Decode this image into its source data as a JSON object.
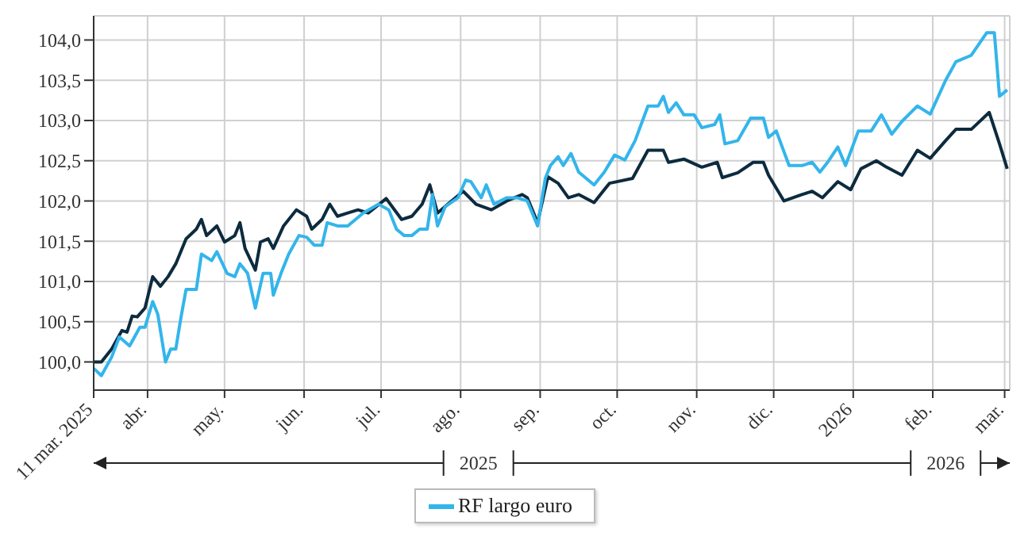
{
  "chart_data": {
    "type": "line",
    "xlim": [
      "2025-03-11",
      "2026-03-03"
    ],
    "ylim": [
      99.65,
      104.3
    ],
    "xticks": [
      {
        "value": "2025-03-11",
        "label": "11 mar. 2025"
      },
      {
        "value": "2025-04-01",
        "label": "abr."
      },
      {
        "value": "2025-05-01",
        "label": "may."
      },
      {
        "value": "2025-06-01",
        "label": "jun."
      },
      {
        "value": "2025-07-01",
        "label": "jul."
      },
      {
        "value": "2025-08-01",
        "label": "ago."
      },
      {
        "value": "2025-09-01",
        "label": "sep."
      },
      {
        "value": "2025-10-01",
        "label": "oct."
      },
      {
        "value": "2025-11-01",
        "label": "nov."
      },
      {
        "value": "2025-12-01",
        "label": "dic."
      },
      {
        "value": "2026-01-01",
        "label": "2026"
      },
      {
        "value": "2026-02-01",
        "label": "feb."
      },
      {
        "value": "2026-03-01",
        "label": "mar."
      }
    ],
    "yticks": [
      {
        "value": 100,
        "label": "100,0"
      },
      {
        "value": 100.5,
        "label": "100,5"
      },
      {
        "value": 101,
        "label": "101,0"
      },
      {
        "value": 101.5,
        "label": "101,5"
      },
      {
        "value": 102,
        "label": "102,0"
      },
      {
        "value": 102.5,
        "label": "102,5"
      },
      {
        "value": 103,
        "label": "103,0"
      },
      {
        "value": 103.5,
        "label": "103,5"
      },
      {
        "value": 104,
        "label": "104,0"
      }
    ],
    "grid": true,
    "legend": "bottom",
    "line_style": "solid",
    "annotations": [
      "2025",
      "2026"
    ],
    "series": [
      {
        "color": "#0d2b3e",
        "x": [
          "2025-03-11",
          "2025-03-14",
          "2025-03-18",
          "2025-03-22",
          "2025-03-24",
          "2025-03-26",
          "2025-03-28",
          "2025-03-31",
          "2025-04-03",
          "2025-04-06",
          "2025-04-09",
          "2025-04-12",
          "2025-04-16",
          "2025-04-20",
          "2025-04-22",
          "2025-04-24",
          "2025-04-28",
          "2025-05-01",
          "2025-05-05",
          "2025-05-07",
          "2025-05-09",
          "2025-05-13",
          "2025-05-15",
          "2025-05-18",
          "2025-05-20",
          "2025-05-24",
          "2025-05-29",
          "2025-06-02",
          "2025-06-04",
          "2025-06-08",
          "2025-06-11",
          "2025-06-14",
          "2025-06-18",
          "2025-06-22",
          "2025-06-26",
          "2025-07-03",
          "2025-07-09",
          "2025-07-13",
          "2025-07-17",
          "2025-07-20",
          "2025-07-23",
          "2025-07-27",
          "2025-08-02",
          "2025-08-07",
          "2025-08-13",
          "2025-08-19",
          "2025-08-25",
          "2025-08-27",
          "2025-08-31",
          "2025-09-04",
          "2025-09-08",
          "2025-09-12",
          "2025-09-16",
          "2025-09-22",
          "2025-09-28",
          "2025-10-07",
          "2025-10-13",
          "2025-10-19",
          "2025-10-21",
          "2025-10-27",
          "2025-11-03",
          "2025-11-09",
          "2025-11-11",
          "2025-11-17",
          "2025-11-23",
          "2025-11-27",
          "2025-11-29",
          "2025-12-05",
          "2025-12-12",
          "2025-12-16",
          "2025-12-20",
          "2025-12-26",
          "2025-12-31",
          "2026-01-04",
          "2026-01-10",
          "2026-01-14",
          "2026-01-20",
          "2026-01-26",
          "2026-01-31",
          "2026-02-06",
          "2026-02-10",
          "2026-02-16",
          "2026-02-23",
          "2026-02-27",
          "2026-03-02"
        ],
        "values": [
          100.0,
          100.0,
          100.16,
          100.39,
          100.37,
          100.57,
          100.56,
          100.67,
          101.06,
          100.94,
          101.06,
          101.22,
          101.53,
          101.65,
          101.77,
          101.57,
          101.69,
          101.49,
          101.57,
          101.73,
          101.41,
          101.14,
          101.49,
          101.53,
          101.41,
          101.69,
          101.89,
          101.81,
          101.65,
          101.77,
          101.96,
          101.81,
          101.85,
          101.89,
          101.85,
          102.03,
          101.77,
          101.81,
          101.96,
          102.2,
          101.85,
          101.96,
          102.12,
          101.96,
          101.89,
          102.0,
          102.08,
          102.04,
          101.73,
          102.3,
          102.22,
          102.04,
          102.08,
          101.98,
          102.22,
          102.28,
          102.63,
          102.63,
          102.48,
          102.52,
          102.42,
          102.48,
          102.29,
          102.35,
          102.48,
          102.48,
          102.32,
          102.0,
          102.08,
          102.12,
          102.04,
          102.24,
          102.14,
          102.4,
          102.5,
          102.42,
          102.32,
          102.63,
          102.53,
          102.75,
          102.89,
          102.89,
          103.1,
          102.71,
          102.4
        ]
      },
      {
        "name": "RF largo euro",
        "color": "#33b5eb",
        "x": [
          "2025-03-11",
          "2025-03-14",
          "2025-03-18",
          "2025-03-21",
          "2025-03-25",
          "2025-03-29",
          "2025-03-31",
          "2025-04-03",
          "2025-04-05",
          "2025-04-08",
          "2025-04-10",
          "2025-04-12",
          "2025-04-14",
          "2025-04-16",
          "2025-04-20",
          "2025-04-22",
          "2025-04-26",
          "2025-04-28",
          "2025-05-02",
          "2025-05-05",
          "2025-05-07",
          "2025-05-10",
          "2025-05-13",
          "2025-05-16",
          "2025-05-19",
          "2025-05-20",
          "2025-05-23",
          "2025-05-26",
          "2025-05-30",
          "2025-06-02",
          "2025-06-05",
          "2025-06-08",
          "2025-06-10",
          "2025-06-14",
          "2025-06-18",
          "2025-06-24",
          "2025-06-30",
          "2025-07-04",
          "2025-07-07",
          "2025-07-10",
          "2025-07-13",
          "2025-07-16",
          "2025-07-19",
          "2025-07-21",
          "2025-07-23",
          "2025-07-26",
          "2025-07-31",
          "2025-08-03",
          "2025-08-05",
          "2025-08-09",
          "2025-08-11",
          "2025-08-14",
          "2025-08-19",
          "2025-08-23",
          "2025-08-27",
          "2025-08-31",
          "2025-09-03",
          "2025-09-05",
          "2025-09-08",
          "2025-09-10",
          "2025-09-13",
          "2025-09-16",
          "2025-09-22",
          "2025-09-26",
          "2025-09-30",
          "2025-10-04",
          "2025-10-08",
          "2025-10-13",
          "2025-10-17",
          "2025-10-19",
          "2025-10-21",
          "2025-10-24",
          "2025-10-27",
          "2025-10-31",
          "2025-11-03",
          "2025-11-08",
          "2025-11-10",
          "2025-11-12",
          "2025-11-17",
          "2025-11-22",
          "2025-11-27",
          "2025-11-29",
          "2025-12-02",
          "2025-12-07",
          "2025-12-12",
          "2025-12-16",
          "2025-12-19",
          "2025-12-22",
          "2025-12-26",
          "2025-12-29",
          "2026-01-03",
          "2026-01-08",
          "2026-01-12",
          "2026-01-16",
          "2026-01-20",
          "2026-01-26",
          "2026-01-31",
          "2026-02-06",
          "2026-02-10",
          "2026-02-16",
          "2026-02-22",
          "2026-02-25",
          "2026-02-27",
          "2026-03-02"
        ],
        "values": [
          99.92,
          99.83,
          100.06,
          100.31,
          100.2,
          100.43,
          100.43,
          100.75,
          100.59,
          100.0,
          100.16,
          100.16,
          100.55,
          100.9,
          100.9,
          101.34,
          101.26,
          101.37,
          101.1,
          101.06,
          101.22,
          101.1,
          100.67,
          101.1,
          101.1,
          100.83,
          101.1,
          101.34,
          101.57,
          101.55,
          101.45,
          101.45,
          101.73,
          101.69,
          101.69,
          101.85,
          101.96,
          101.89,
          101.65,
          101.57,
          101.57,
          101.65,
          101.65,
          102.08,
          101.69,
          101.93,
          102.04,
          102.26,
          102.24,
          102.04,
          102.2,
          101.96,
          102.04,
          102.04,
          102.0,
          101.69,
          102.28,
          102.44,
          102.55,
          102.44,
          102.59,
          102.36,
          102.2,
          102.36,
          102.57,
          102.51,
          102.75,
          103.18,
          103.18,
          103.3,
          103.1,
          103.22,
          103.07,
          103.07,
          102.91,
          102.95,
          103.07,
          102.71,
          102.75,
          103.03,
          103.03,
          102.79,
          102.87,
          102.44,
          102.44,
          102.48,
          102.36,
          102.48,
          102.67,
          102.44,
          102.87,
          102.87,
          103.07,
          102.83,
          102.99,
          103.18,
          103.08,
          103.5,
          103.73,
          103.81,
          104.09,
          104.09,
          103.3,
          103.38
        ]
      }
    ]
  }
}
